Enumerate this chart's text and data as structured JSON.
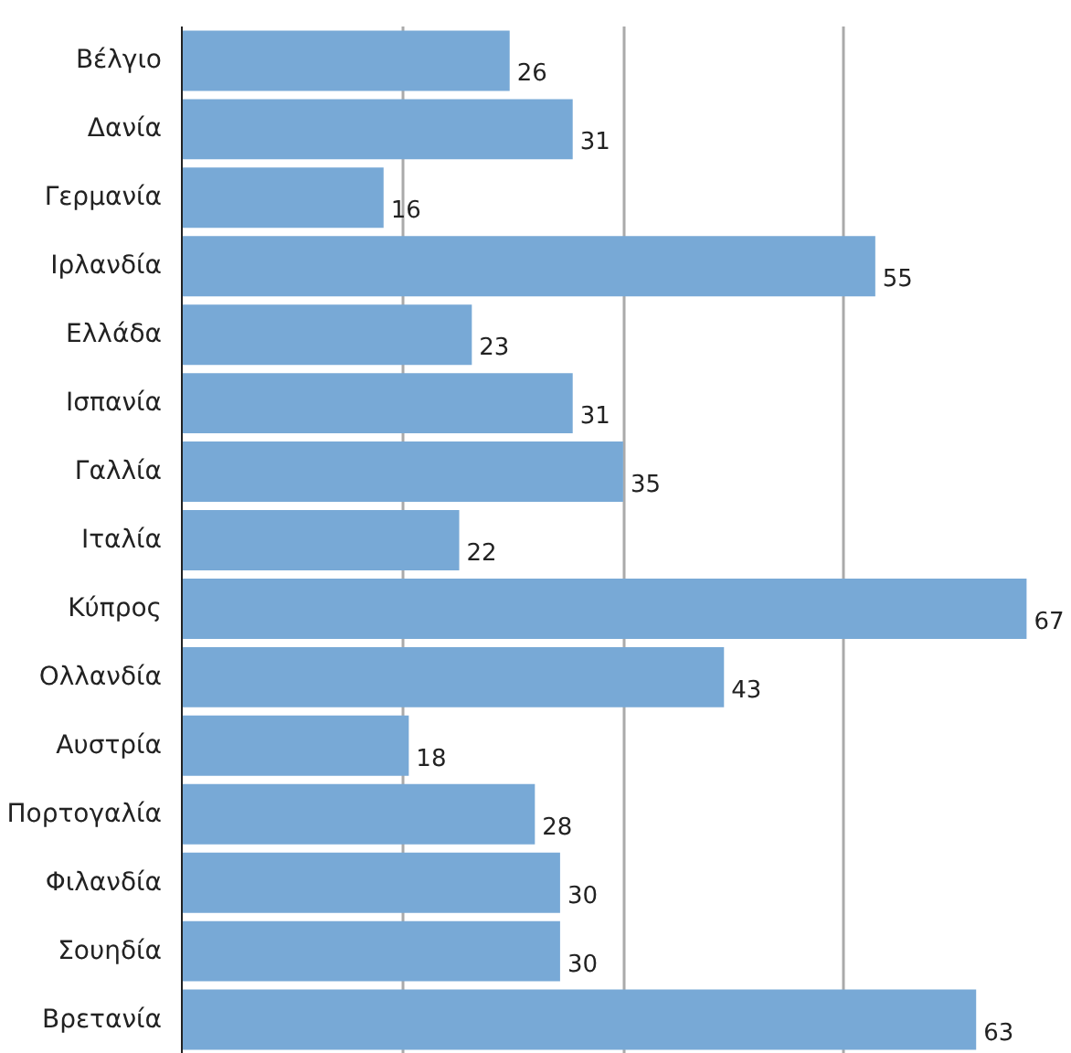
{
  "chart_data": {
    "type": "bar",
    "orientation": "horizontal",
    "categories": [
      "Βέλγιο",
      "Δανία",
      "Γερμανία",
      "Ιρλανδία",
      "Ελλάδα",
      "Ισπανία",
      "Γαλλία",
      "Ιταλία",
      "Κύπρος",
      "Ολλανδία",
      "Αυστρία",
      "Πορτογαλία",
      "Φιλανδία",
      "Σουηδία",
      "Βρετανία"
    ],
    "values": [
      26,
      31,
      16,
      55,
      23,
      31,
      35,
      22,
      67,
      43,
      18,
      28,
      30,
      30,
      63
    ],
    "color": "#78a9d6",
    "data_labels": true,
    "grid": "x",
    "tick_labels": "y"
  }
}
